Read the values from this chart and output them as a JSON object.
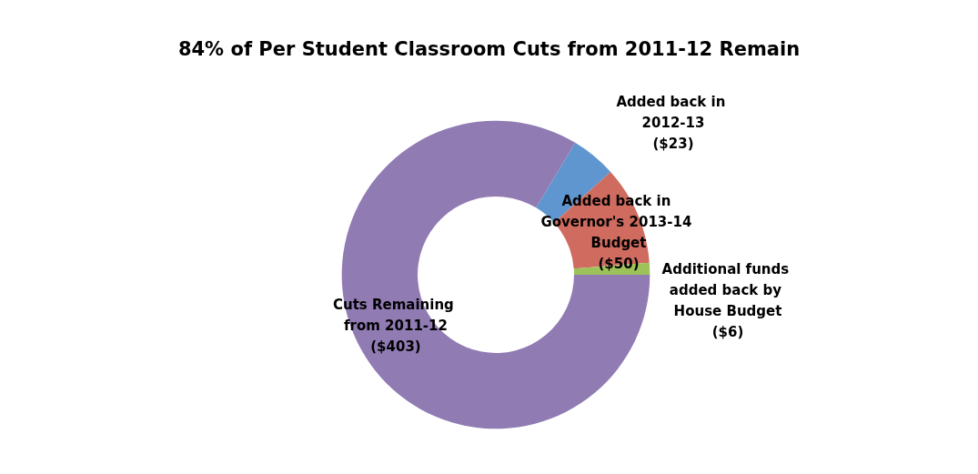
{
  "chart_data": {
    "type": "donut",
    "title": "84% of Per Student Classroom Cuts from 2011-12 Remain",
    "categories": [
      "Added back in 2012-13",
      "Added back in Governor's 2013-14 Budget",
      "Additional funds added back by House Budget",
      "Cuts Remaining from 2011-12"
    ],
    "values": [
      23,
      50,
      6,
      403
    ],
    "value_labels": [
      "($23)",
      "($50)",
      "($6)",
      "($403)"
    ],
    "colors": [
      "#6096cf",
      "#cf6b5f",
      "#9dc25a",
      "#907bb3"
    ],
    "legend": false
  }
}
